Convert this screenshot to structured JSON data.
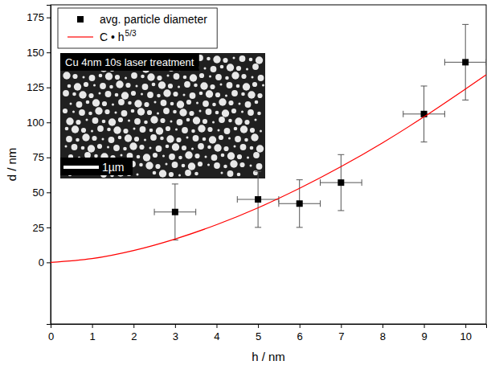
{
  "chart_data": {
    "type": "scatter",
    "x_label": "h / nm",
    "y_label": "d / nm",
    "xlim": [
      0,
      10.5
    ],
    "xticks": [
      0,
      1,
      2,
      3,
      4,
      5,
      6,
      7,
      8,
      9,
      10
    ],
    "ylim": [
      -44,
      184
    ],
    "yticks": [
      0,
      25,
      50,
      75,
      100,
      125,
      150,
      175
    ],
    "legend": "upper left",
    "series": [
      {
        "name": "avg. particle diameter",
        "type": "scatter",
        "marker": "square",
        "color": "#000000",
        "x": [
          3,
          5,
          6,
          7,
          9,
          10
        ],
        "values": [
          36,
          45,
          42,
          57,
          106,
          143
        ],
        "x_error": [
          0.5,
          0.5,
          0.5,
          0.5,
          0.5,
          0.5
        ],
        "y_error": [
          20,
          20,
          17,
          20,
          20,
          27
        ]
      },
      {
        "name": "C • h",
        "name_superscript": "5/3",
        "type": "line",
        "line_style": "solid",
        "color": "#ff0000",
        "x": [
          0,
          1,
          2,
          3,
          4,
          5,
          6,
          7,
          8,
          9,
          10,
          10.5
        ],
        "values": [
          0,
          2.7,
          8.5,
          16.7,
          26.9,
          39.0,
          52.9,
          68.4,
          85.4,
          104,
          123.9,
          134
        ]
      }
    ],
    "inset": {
      "title": "Cu 4nm 10s laser treatment",
      "scale_bar_label": "1µm"
    }
  }
}
